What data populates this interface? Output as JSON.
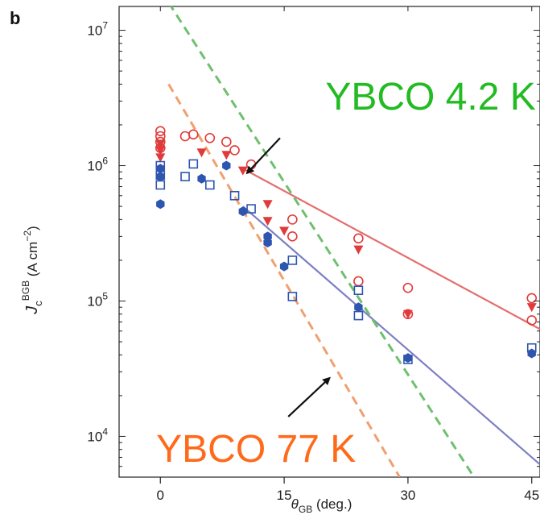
{
  "panel_label": "b",
  "chart_data": {
    "type": "scatter",
    "title": "",
    "xlabel": {
      "main": "θ",
      "sub": "GB",
      "rest": " (deg.)"
    },
    "ylabel": {
      "main": "J",
      "sub": "c",
      "sup": "BGB",
      "rest": " (A cm",
      "unitsup": "−2",
      "close": ")"
    },
    "xlim": [
      -5,
      46
    ],
    "ylim": [
      5000,
      15000000
    ],
    "yscale": "log",
    "xticks": [
      0,
      15,
      30,
      45
    ],
    "xtick_labels": [
      "0",
      "15",
      "30",
      "45"
    ],
    "yticks": [
      10000,
      100000,
      1000000,
      10000000
    ],
    "ytick_labels": [
      {
        "base": "10",
        "exp": "4"
      },
      {
        "base": "10",
        "exp": "5"
      },
      {
        "base": "10",
        "exp": "6"
      },
      {
        "base": "10",
        "exp": "7"
      }
    ],
    "grid": false,
    "series": [
      {
        "color": "#e03a3a",
        "marker": "circle-open",
        "points": [
          [
            0,
            1800000
          ],
          [
            0,
            1650000
          ],
          [
            0,
            1500000
          ],
          [
            0,
            1350000
          ],
          [
            3,
            1650000
          ],
          [
            4,
            1700000
          ],
          [
            6,
            1600000
          ],
          [
            8,
            1500000
          ],
          [
            9,
            1300000
          ],
          [
            11,
            1020000
          ],
          [
            16,
            400000
          ],
          [
            16,
            300000
          ],
          [
            24,
            290000
          ],
          [
            24,
            140000
          ],
          [
            30,
            125000
          ],
          [
            30,
            80000
          ],
          [
            45,
            105000
          ],
          [
            45,
            72000
          ]
        ]
      },
      {
        "color": "#e03a3a",
        "marker": "triangle-down",
        "points": [
          [
            0,
            1450000
          ],
          [
            0,
            1300000
          ],
          [
            0,
            1150000
          ],
          [
            5,
            1250000
          ],
          [
            8,
            1200000
          ],
          [
            10,
            920000
          ],
          [
            13,
            520000
          ],
          [
            13,
            390000
          ],
          [
            15,
            330000
          ],
          [
            24,
            240000
          ],
          [
            30,
            80000
          ],
          [
            45,
            90000
          ]
        ]
      },
      {
        "color": "#2e56b0",
        "marker": "square-open",
        "points": [
          [
            0,
            1000000
          ],
          [
            0,
            850000
          ],
          [
            0,
            720000
          ],
          [
            3,
            830000
          ],
          [
            4,
            1030000
          ],
          [
            6,
            720000
          ],
          [
            9,
            600000
          ],
          [
            11,
            480000
          ],
          [
            16,
            200000
          ],
          [
            16,
            108000
          ],
          [
            24,
            120000
          ],
          [
            24,
            78000
          ],
          [
            30,
            37000
          ],
          [
            45,
            45000
          ]
        ]
      },
      {
        "color": "#2e56b0",
        "marker": "hexagon",
        "points": [
          [
            0,
            950000
          ],
          [
            0,
            830000
          ],
          [
            0,
            520000
          ],
          [
            5,
            800000
          ],
          [
            8,
            1000000
          ],
          [
            10,
            460000
          ],
          [
            13,
            300000
          ],
          [
            13,
            270000
          ],
          [
            15,
            180000
          ],
          [
            24,
            90000
          ],
          [
            30,
            38000
          ],
          [
            45,
            41000
          ]
        ]
      }
    ],
    "fit_lines": [
      {
        "color": "#e46e6e",
        "style": "solid",
        "from": [
          10,
          950000
        ],
        "to": [
          46,
          62000
        ]
      },
      {
        "color": "#7d7fc4",
        "style": "solid",
        "from": [
          10,
          500000
        ],
        "to": [
          46,
          6200
        ]
      },
      {
        "color": "#6fbf6f",
        "style": "dashed",
        "from": [
          1,
          16000000
        ],
        "to": [
          38,
          5000
        ]
      },
      {
        "color": "#f0a070",
        "style": "dashed",
        "from": [
          1,
          4000000
        ],
        "to": [
          29,
          5000
        ]
      }
    ],
    "annotations": [
      {
        "text": "YBCO 4.2 K",
        "color": "#22bb22",
        "at": [
          20,
          2600000
        ],
        "arrow_from": [
          14.5,
          1600000
        ],
        "arrow_to": [
          10.5,
          880000
        ]
      },
      {
        "text": "YBCO 77 K",
        "color": "#ff6a1a",
        "at": [
          -0.5,
          6500
        ],
        "arrow_from": [
          15.5,
          14000
        ],
        "arrow_to": [
          20.5,
          27000
        ]
      }
    ]
  }
}
